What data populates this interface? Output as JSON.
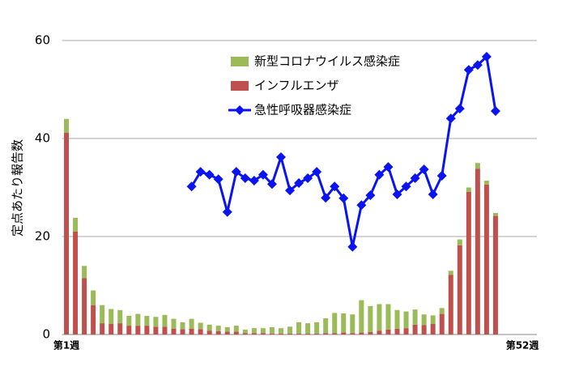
{
  "chart_data": {
    "type": "bar",
    "y_label": "定点あたり報告数",
    "categories": [
      "第1週",
      null,
      null,
      null,
      null,
      null,
      null,
      null,
      null,
      null,
      null,
      null,
      null,
      null,
      null,
      null,
      null,
      null,
      null,
      null,
      null,
      null,
      null,
      null,
      null,
      null,
      null,
      null,
      null,
      null,
      null,
      null,
      null,
      null,
      null,
      null,
      null,
      null,
      null,
      null,
      null,
      null,
      null,
      null,
      null,
      null,
      null,
      null,
      null,
      null,
      null,
      "第52週"
    ],
    "series": [
      {
        "name": "新型コロナウイルス感染症",
        "type": "bar",
        "color": "#9bbb59",
        "values": [
          2.8,
          2.8,
          2.5,
          3,
          3.7,
          3,
          2.7,
          2,
          2.4,
          2,
          2,
          2.4,
          2,
          1.4,
          2,
          1.3,
          1.2,
          1.1,
          0.9,
          1.2,
          0.7,
          1,
          1,
          1.3,
          1.1,
          1.4,
          2.3,
          2.1,
          2.3,
          3,
          4.1,
          3.9,
          3.8,
          6.6,
          5.3,
          5.4,
          5.2,
          3.8,
          3.4,
          3.1,
          2.2,
          1.7,
          1.2,
          0.8,
          1.2,
          0.9,
          1.2,
          0.8,
          0.6,
          null,
          null,
          null
        ]
      },
      {
        "name": "インフルエンザ",
        "type": "bar",
        "color": "#c0504d",
        "values": [
          41.2,
          21,
          11.5,
          6,
          2.3,
          2.2,
          2.3,
          1.8,
          1.8,
          1.8,
          1.6,
          1.6,
          1.2,
          1.1,
          1.2,
          1.1,
          0.8,
          0.7,
          0.6,
          0.6,
          0.3,
          0.3,
          0.3,
          0.2,
          0.2,
          0.2,
          0.2,
          0.2,
          0.2,
          0.3,
          0.3,
          0.4,
          0.3,
          0.4,
          0.5,
          0.8,
          1,
          1.2,
          1.3,
          2,
          1.9,
          2.2,
          4.2,
          12.2,
          18.2,
          29.1,
          33.8,
          30.6,
          24.2,
          null,
          null,
          null
        ]
      },
      {
        "name": "急性呼吸器感染症",
        "type": "line",
        "color": "#0a14f0",
        "values": [
          null,
          null,
          null,
          null,
          null,
          null,
          null,
          null,
          null,
          null,
          null,
          null,
          null,
          null,
          30.2,
          33.2,
          32.6,
          31.7,
          25,
          33.2,
          31.9,
          31.4,
          32.6,
          30.7,
          36.2,
          29.4,
          30.9,
          31.9,
          33.2,
          27.9,
          30.2,
          27.8,
          17.9,
          26.4,
          28.4,
          32.6,
          34.2,
          28.6,
          30.2,
          31.9,
          33.7,
          28.6,
          32.4,
          44.1,
          46.1,
          54,
          55,
          56.7,
          45.6,
          null,
          null,
          null
        ]
      }
    ],
    "stacked": true,
    "ylim": [
      0,
      60
    ],
    "yticks": [
      0,
      20,
      40,
      60
    ],
    "grid": true
  }
}
